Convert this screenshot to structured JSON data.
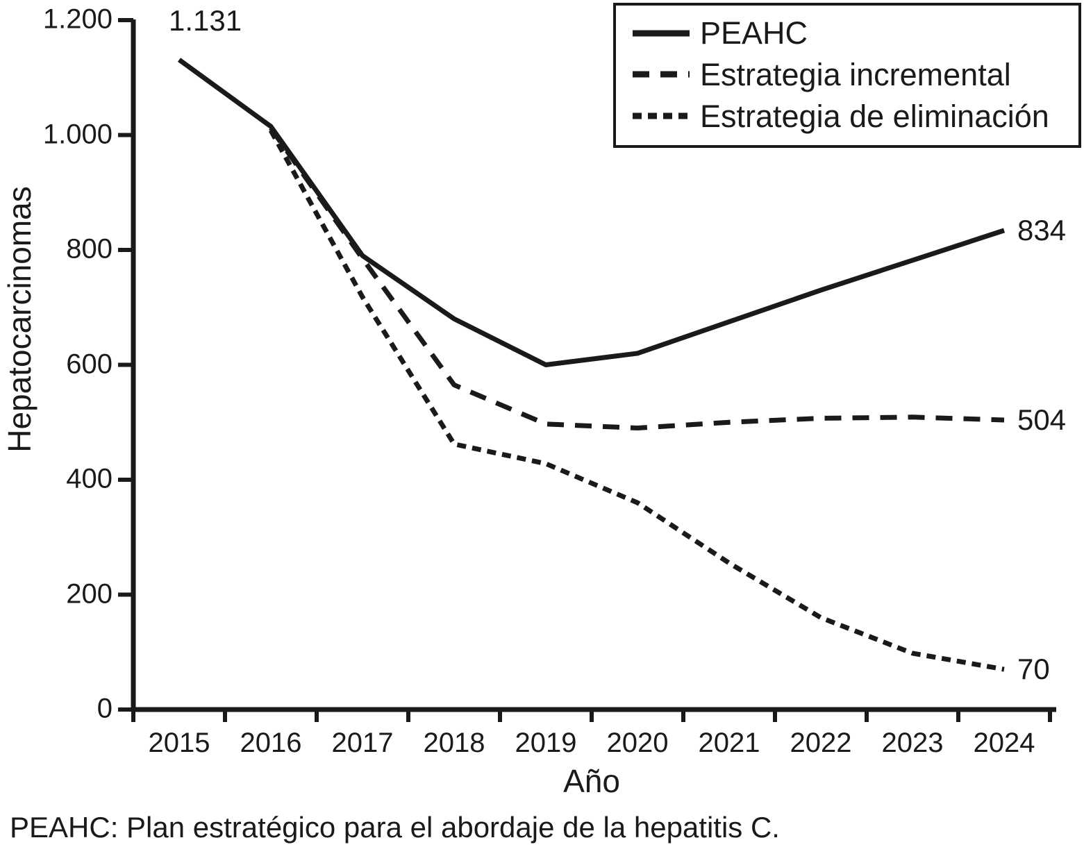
{
  "colors": {
    "line": "#1a1a1a",
    "text": "#1a1a1a",
    "background": "#ffffff"
  },
  "footer": {
    "note": "PEAHC: Plan estratégico para el abordaje de la hepatitis C."
  },
  "chart_data": {
    "type": "line",
    "title": "",
    "xlabel": "Año",
    "ylabel": "Hepatocarcinomas",
    "x": [
      2015,
      2016,
      2017,
      2018,
      2019,
      2020,
      2021,
      2022,
      2023,
      2024
    ],
    "x_tick_labels": [
      "2015",
      "2016",
      "2017",
      "2018",
      "2019",
      "2020",
      "2021",
      "2022",
      "2023",
      "2024"
    ],
    "ylim": [
      0,
      1200
    ],
    "y_ticks": [
      0,
      200,
      400,
      600,
      800,
      1000,
      1200
    ],
    "y_tick_labels": [
      "0",
      "200",
      "400",
      "600",
      "800",
      "1.000",
      "1.200"
    ],
    "grid": false,
    "legend_position": "top-right",
    "series": [
      {
        "name": "PEAHC",
        "dash": "solid",
        "values": [
          1131,
          1015,
          790,
          680,
          600,
          620,
          675,
          730,
          782,
          834
        ],
        "end_label": "834"
      },
      {
        "name": "Estrategia incremental",
        "dash": "long-dash",
        "values": [
          null,
          1012,
          785,
          565,
          497,
          490,
          500,
          507,
          509,
          504
        ],
        "end_label": "504"
      },
      {
        "name": "Estrategia de eliminación",
        "dash": "short-dash",
        "values": [
          null,
          1008,
          718,
          462,
          428,
          360,
          255,
          160,
          98,
          70
        ],
        "end_label": "70"
      }
    ],
    "annotations": [
      {
        "text": "1.131",
        "x": 2015,
        "y": 1131,
        "position": "top-right"
      }
    ]
  }
}
